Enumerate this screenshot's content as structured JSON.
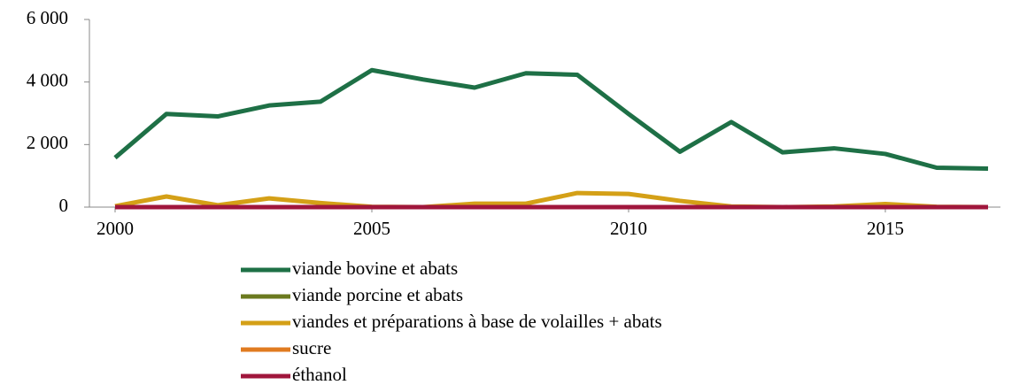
{
  "chart_data": {
    "type": "line",
    "x": [
      2000,
      2001,
      2002,
      2003,
      2004,
      2005,
      2006,
      2007,
      2008,
      2009,
      2010,
      2011,
      2012,
      2013,
      2014,
      2015,
      2016,
      2017
    ],
    "series": [
      {
        "name": "viande bovine et abats",
        "color": "#1e7046",
        "values": [
          1580,
          2980,
          2900,
          3250,
          3370,
          4380,
          4080,
          3820,
          4280,
          4230,
          2980,
          1770,
          2720,
          1750,
          1880,
          1700,
          1260,
          1230
        ]
      },
      {
        "name": "viande porcine et abats",
        "color": "#6b7a1f",
        "values": [
          0,
          0,
          0,
          0,
          0,
          0,
          0,
          0,
          0,
          0,
          0,
          0,
          0,
          0,
          0,
          0,
          0,
          0
        ]
      },
      {
        "name": "viandes et préparations à base de volailles + abats",
        "color": "#d4a017",
        "values": [
          30,
          340,
          60,
          280,
          130,
          10,
          0,
          110,
          110,
          450,
          420,
          200,
          20,
          0,
          20,
          100,
          10,
          0
        ]
      },
      {
        "name": "sucre",
        "color": "#e07b20",
        "values": [
          0,
          0,
          0,
          0,
          0,
          0,
          0,
          0,
          0,
          0,
          0,
          0,
          0,
          0,
          0,
          0,
          0,
          0
        ]
      },
      {
        "name": "éthanol",
        "color": "#a0163c",
        "values": [
          0,
          0,
          0,
          0,
          0,
          0,
          0,
          0,
          0,
          0,
          0,
          0,
          0,
          0,
          0,
          0,
          0,
          0
        ]
      }
    ],
    "xlim": [
      1999.5,
      2017.5
    ],
    "xticks": [
      2000,
      2005,
      2010,
      2015
    ],
    "ylim": [
      0,
      6000
    ],
    "yticks": [
      0,
      {
        "value": 2000,
        "label": "2 000"
      },
      {
        "value": 4000,
        "label": "4 000"
      },
      {
        "value": 6000,
        "label": "6 000"
      }
    ],
    "grid": false,
    "legend": "bottom"
  }
}
